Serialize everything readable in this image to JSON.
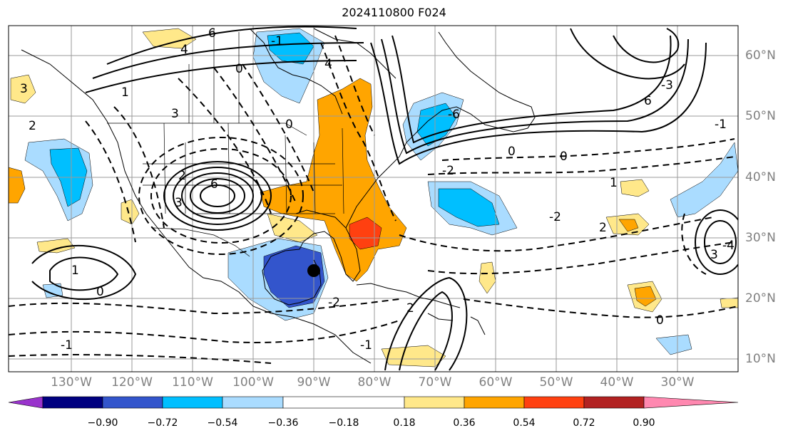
{
  "title": "2024110800 F024",
  "lon_labels": [
    "130°W",
    "120°W",
    "110°W",
    "100°W",
    "90°W",
    "80°W",
    "70°W",
    "60°W",
    "50°W",
    "40°W",
    "30°W"
  ],
  "lat_labels": [
    "60°N",
    "50°N",
    "40°N",
    "30°N",
    "20°N",
    "10°N"
  ],
  "colorbar": {
    "ticks": [
      "−0.90",
      "−0.72",
      "−0.54",
      "−0.36",
      "−0.18",
      "0.18",
      "0.36",
      "0.54",
      "0.72",
      "0.90"
    ],
    "colors": [
      "#9933cc",
      "#000080",
      "#3355cc",
      "#00bfff",
      "#aadcff",
      "#ffffff",
      "#ffe88a",
      "#ffa500",
      "#ff4010",
      "#b22222",
      "#ff88b0"
    ]
  },
  "contour_labels": [
    "6",
    "4",
    "3",
    "2",
    "1",
    "0",
    "-1",
    "0",
    "2",
    "3",
    "6",
    "-6",
    "-2",
    "6",
    "-3",
    "0",
    "1",
    "0",
    "-1",
    "3",
    "-4",
    "2",
    "-2",
    "-1",
    "1",
    "0",
    "-2",
    "2",
    "-1",
    "0",
    "3",
    "4"
  ],
  "marker": "center-dot"
}
